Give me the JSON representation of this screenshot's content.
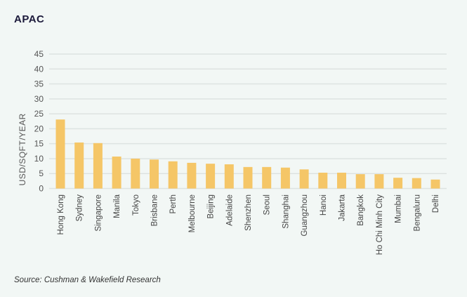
{
  "chart_data": {
    "type": "bar",
    "title": "APAC",
    "ylabel": "USD/SQFT/YEAR",
    "xlabel": "",
    "ylim": [
      0,
      45
    ],
    "yticks": [
      0,
      5,
      10,
      15,
      20,
      25,
      30,
      35,
      40,
      45
    ],
    "grid": true,
    "bar_color": "#f5c667",
    "categories": [
      "Hong Kong",
      "Sydney",
      "Singapore",
      "Manila",
      "Tokyo",
      "Brisbane",
      "Perth",
      "Melbourne",
      "Beijing",
      "Adelaide",
      "Shenzhen",
      "Seoul",
      "Shanghai",
      "Guangzhou",
      "Hanoi",
      "Jakarta",
      "Bangkok",
      "Ho Chi Minh City",
      "Mumbai",
      "Bengaluru",
      "Delhi"
    ],
    "values": [
      23.1,
      15.4,
      15.2,
      10.7,
      10.0,
      9.7,
      9.1,
      8.6,
      8.3,
      8.1,
      7.2,
      7.2,
      7.0,
      6.4,
      5.3,
      5.3,
      4.8,
      4.8,
      3.6,
      3.5,
      3.0
    ]
  },
  "source": "Source: Cushman & Wakefield Research"
}
